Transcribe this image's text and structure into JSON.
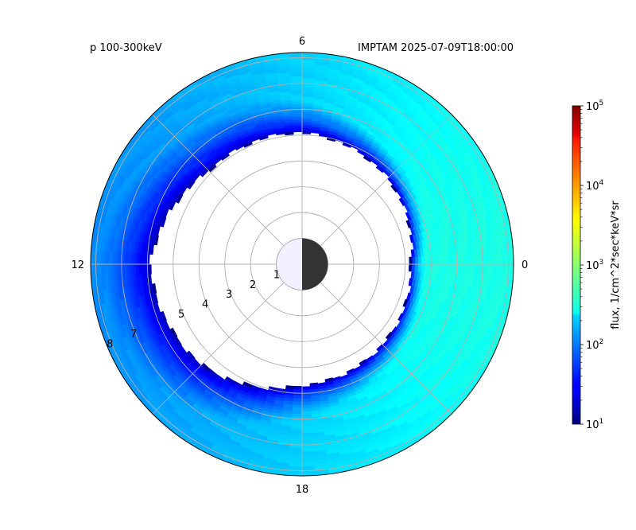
{
  "chart_data": {
    "type": "heatmap",
    "projection": "polar",
    "title_left": "p 100-300keV",
    "title_right": "IMPTAM 2025-07-09T18:00:00",
    "angular_ticks": [
      "0",
      "6",
      "12",
      "18"
    ],
    "radial_ticks": [
      "1",
      "2",
      "3",
      "4",
      "5",
      "7",
      "8"
    ],
    "r_range": [
      0,
      8.2
    ],
    "inner_boundary_r": {
      "0": 4.2,
      "3": 4.7,
      "6": 5.1,
      "9": 5.1,
      "12": 5.9,
      "15": 5.5,
      "18": 4.7,
      "21": 4.4
    },
    "colorbar": {
      "label": "flux, 1/cm^2*sec*keV*sr",
      "scale": "log",
      "min": 10,
      "max": 100000,
      "ticks": [
        {
          "base": "10",
          "exp": "1",
          "value": 10
        },
        {
          "base": "10",
          "exp": "2",
          "value": 100
        },
        {
          "base": "10",
          "exp": "3",
          "value": 1000
        },
        {
          "base": "10",
          "exp": "4",
          "value": 10000
        },
        {
          "base": "10",
          "exp": "5",
          "value": 100000
        }
      ],
      "colormap": "jet"
    },
    "earth": {
      "day_color": "#f0f0ff",
      "night_color": "#333333"
    },
    "grid": true
  }
}
